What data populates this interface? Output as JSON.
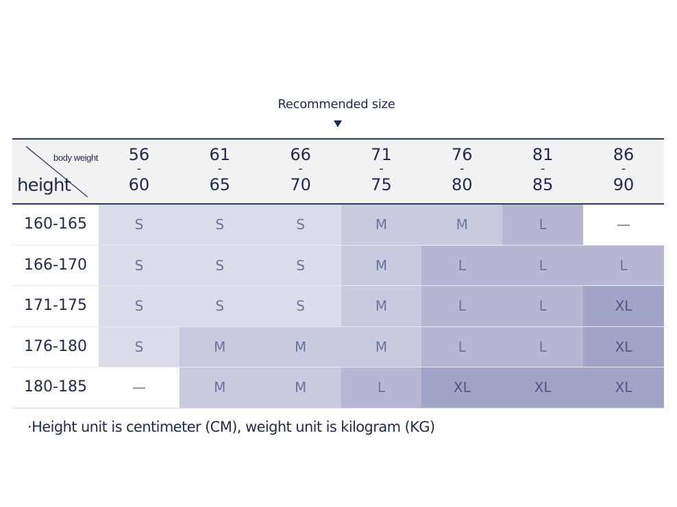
{
  "title": "Recommended size",
  "corner": {
    "top_label": "body weight",
    "bottom_label": "height"
  },
  "weight_columns": [
    {
      "low": "56",
      "sep": "-",
      "high": "60"
    },
    {
      "low": "61",
      "sep": "-",
      "high": "65"
    },
    {
      "low": "66",
      "sep": "-",
      "high": "70"
    },
    {
      "low": "71",
      "sep": "-",
      "high": "75"
    },
    {
      "low": "76",
      "sep": "-",
      "high": "80"
    },
    {
      "low": "81",
      "sep": "-",
      "high": "85"
    },
    {
      "low": "86",
      "sep": "-",
      "high": "90"
    }
  ],
  "rows": [
    {
      "height": "160-165",
      "sizes": [
        "S",
        "S",
        "S",
        "M",
        "M",
        "L",
        "—"
      ]
    },
    {
      "height": "166-170",
      "sizes": [
        "S",
        "S",
        "S",
        "M",
        "L",
        "L",
        "L"
      ]
    },
    {
      "height": "171-175",
      "sizes": [
        "S",
        "S",
        "S",
        "M",
        "L",
        "L",
        "XL"
      ]
    },
    {
      "height": "176-180",
      "sizes": [
        "S",
        "M",
        "M",
        "M",
        "L",
        "L",
        "XL"
      ]
    },
    {
      "height": "180-185",
      "sizes": [
        "—",
        "M",
        "M",
        "L",
        "XL",
        "XL",
        "XL"
      ]
    }
  ],
  "note": "·Height unit is centimeter (CM), weight unit is kilogram (KG)",
  "colors": {
    "accent": "#2b3666",
    "S": "#dadcea",
    "M": "#c8cadf",
    "L": "#b5b7d3",
    "XL": "#a1a4c6",
    "header_bg": "#f2f2f3"
  }
}
